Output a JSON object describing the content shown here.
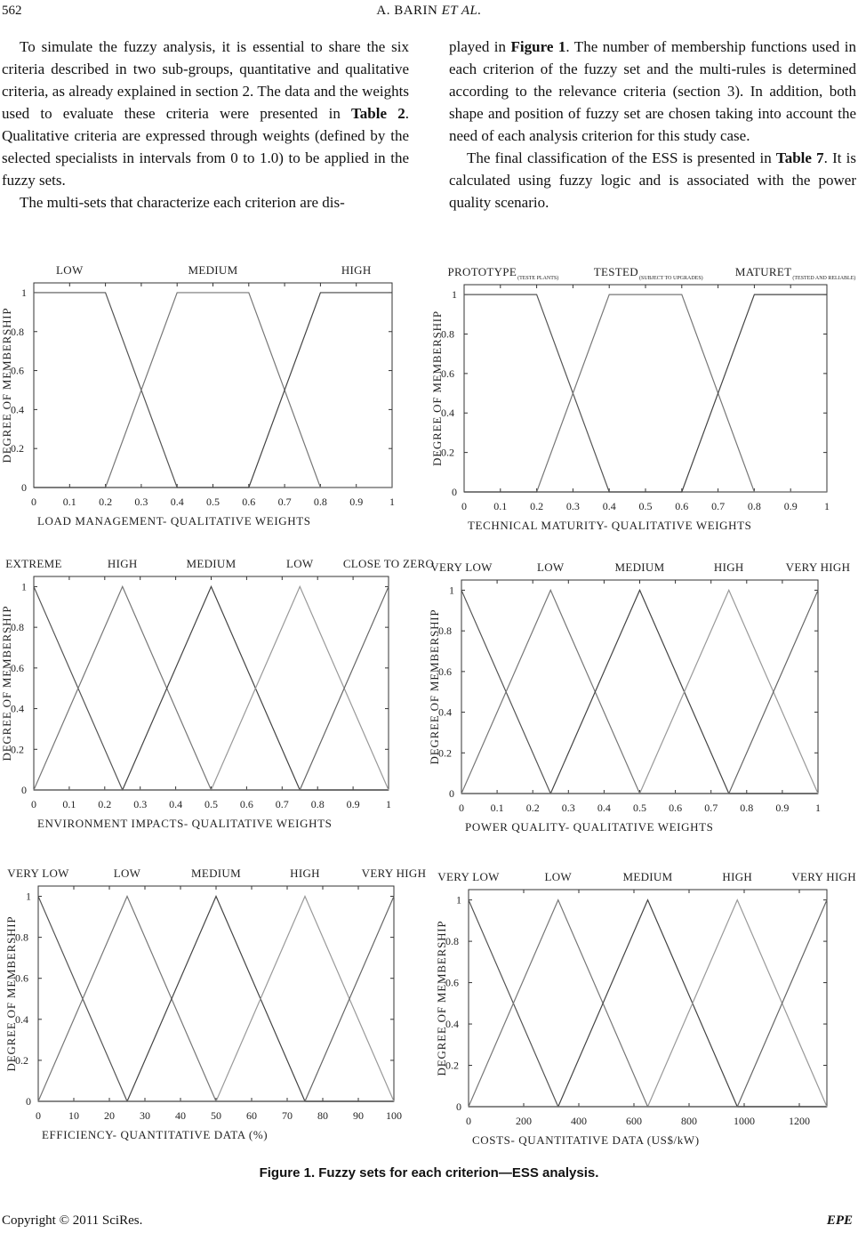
{
  "header": {
    "page_number": "562",
    "running_head_author": "A. BARIN",
    "running_head_etal": "ET AL."
  },
  "left_column": {
    "p1_a": "To simulate the fuzzy analysis, it is essential to share the six criteria described in two sub-groups, quantitative and qualitative criteria, as already explained in section 2. The data and the weights used to evaluate these criteria were presented in ",
    "p1_ref": "Table 2",
    "p1_b": ". Qualitative criteria are expressed through weights (defined by the selected specialists in intervals from 0 to 1.0) to be applied in the fuzzy sets.",
    "p2": "The multi-sets that characterize each criterion are dis-"
  },
  "right_column": {
    "p1_a": "played in ",
    "p1_ref": "Figure 1",
    "p1_b": ". The number of membership functions used in each criterion of the fuzzy set and the multi-rules is determined according to the relevance criteria (section 3). In addition, both shape and position of fuzzy set are chosen taking into account the need of each analysis criterion for this study case.",
    "p2_a": "The final classification of the ESS is presented in ",
    "p2_ref": "Table 7",
    "p2_b": ". It is calculated using fuzzy logic and is associated with the power quality scenario."
  },
  "chart_data": [
    {
      "type": "line",
      "xlabel": "LOAD MANAGEMENT- QUALITATIVE WEIGHTS",
      "ylabel": "DEGREE OF MEMBERSHIP",
      "xlim": [
        0,
        1
      ],
      "ylim": [
        0,
        1.05
      ],
      "xticks": [
        "0",
        "0.1",
        "0.2",
        "0.3",
        "0.4",
        "0.5",
        "0.6",
        "0.7",
        "0.8",
        "0.9",
        "1"
      ],
      "yticks": [
        "0",
        "0.2",
        "0.4",
        "0.6",
        "0.8",
        "1"
      ],
      "series": [
        {
          "name": "LOW",
          "x": [
            0,
            0.2,
            0.4,
            1
          ],
          "y": [
            1,
            1,
            0,
            0
          ]
        },
        {
          "name": "MEDIUM",
          "x": [
            0,
            0.2,
            0.4,
            0.6,
            0.8,
            1
          ],
          "y": [
            0,
            0,
            1,
            1,
            0,
            0
          ]
        },
        {
          "name": "HIGH",
          "x": [
            0,
            0.6,
            0.8,
            1
          ],
          "y": [
            0,
            0,
            1,
            1
          ]
        }
      ]
    },
    {
      "type": "line",
      "xlabel": "TECHNICAL MATURITY- QUALITATIVE WEIGHTS",
      "ylabel": "DEGREE OF MEMBERSHIP",
      "xlim": [
        0,
        1
      ],
      "ylim": [
        0,
        1.05
      ],
      "xticks": [
        "0",
        "0.1",
        "0.2",
        "0.3",
        "0.4",
        "0.5",
        "0.6",
        "0.7",
        "0.8",
        "0.9",
        "1"
      ],
      "yticks": [
        "0",
        "0.2",
        "0.4",
        "0.6",
        "0.8",
        "1"
      ],
      "series": [
        {
          "name": "PROTOTYPE",
          "subscript": "(TESTE PLANTS)",
          "x": [
            0,
            0.2,
            0.4,
            1
          ],
          "y": [
            1,
            1,
            0,
            0
          ]
        },
        {
          "name": "TESTED",
          "subscript": "(SUBJECT TO UPGRADES)",
          "x": [
            0,
            0.2,
            0.4,
            0.6,
            0.8,
            1
          ],
          "y": [
            0,
            0,
            1,
            1,
            0,
            0
          ]
        },
        {
          "name": "MATURET",
          "subscript": "(TESTED AND RELIABLE)",
          "x": [
            0,
            0.6,
            0.8,
            1
          ],
          "y": [
            0,
            0,
            1,
            1
          ]
        }
      ]
    },
    {
      "type": "line",
      "xlabel": "ENVIRONMENT IMPACTS- QUALITATIVE WEIGHTS",
      "ylabel": "DEGREE OF MEMBERSHIP",
      "xlim": [
        0,
        1
      ],
      "ylim": [
        0,
        1.05
      ],
      "xticks": [
        "0",
        "0.1",
        "0.2",
        "0.3",
        "0.4",
        "0.5",
        "0.6",
        "0.7",
        "0.8",
        "0.9",
        "1"
      ],
      "yticks": [
        "0",
        "0.2",
        "0.4",
        "0.6",
        "0.8",
        "1"
      ],
      "series": [
        {
          "name": "EXTREME",
          "x": [
            0,
            0.25,
            1
          ],
          "y": [
            1,
            0,
            0
          ]
        },
        {
          "name": "HIGH",
          "x": [
            0,
            0.25,
            0.5,
            1
          ],
          "y": [
            0,
            1,
            0,
            0
          ]
        },
        {
          "name": "MEDIUM",
          "x": [
            0,
            0.25,
            0.5,
            0.75,
            1
          ],
          "y": [
            0,
            0,
            1,
            0,
            0
          ]
        },
        {
          "name": "LOW",
          "x": [
            0,
            0.5,
            0.75,
            1
          ],
          "y": [
            0,
            0,
            1,
            0
          ]
        },
        {
          "name": "CLOSE TO ZERO",
          "x": [
            0,
            0.75,
            1
          ],
          "y": [
            0,
            0,
            1
          ]
        }
      ]
    },
    {
      "type": "line",
      "xlabel": "POWER QUALITY- QUALITATIVE WEIGHTS",
      "ylabel": "DEGREE OF MEMBERSHIP",
      "xlim": [
        0,
        1
      ],
      "ylim": [
        0,
        1.05
      ],
      "xticks": [
        "0",
        "0.1",
        "0.2",
        "0.3",
        "0.4",
        "0.5",
        "0.6",
        "0.7",
        "0.8",
        "0.9",
        "1"
      ],
      "yticks": [
        "0",
        "0.2",
        "0.4",
        "0.6",
        "0.8",
        "1"
      ],
      "series": [
        {
          "name": "VERY LOW",
          "x": [
            0,
            0.25,
            1
          ],
          "y": [
            1,
            0,
            0
          ]
        },
        {
          "name": "LOW",
          "x": [
            0,
            0.25,
            0.5,
            1
          ],
          "y": [
            0,
            1,
            0,
            0
          ]
        },
        {
          "name": "MEDIUM",
          "x": [
            0,
            0.25,
            0.5,
            0.75,
            1
          ],
          "y": [
            0,
            0,
            1,
            0,
            0
          ]
        },
        {
          "name": "HIGH",
          "x": [
            0,
            0.5,
            0.75,
            1
          ],
          "y": [
            0,
            0,
            1,
            0
          ]
        },
        {
          "name": "VERY HIGH",
          "x": [
            0,
            0.75,
            1
          ],
          "y": [
            0,
            0,
            1
          ]
        }
      ]
    },
    {
      "type": "line",
      "xlabel": "EFFICIENCY- QUANTITATIVE DATA (%)",
      "ylabel": "DEGREE OF MEMBERSHIP",
      "xlim": [
        0,
        100
      ],
      "ylim": [
        0,
        1.05
      ],
      "xticks": [
        "0",
        "10",
        "20",
        "30",
        "40",
        "50",
        "60",
        "70",
        "80",
        "90",
        "100"
      ],
      "yticks": [
        "0",
        "0.2",
        "0.4",
        "0.6",
        "0.8",
        "1"
      ],
      "series": [
        {
          "name": "VERY LOW",
          "x": [
            0,
            25,
            100
          ],
          "y": [
            1,
            0,
            0
          ]
        },
        {
          "name": "LOW",
          "x": [
            0,
            25,
            50,
            100
          ],
          "y": [
            0,
            1,
            0,
            0
          ]
        },
        {
          "name": "MEDIUM",
          "x": [
            0,
            25,
            50,
            75,
            100
          ],
          "y": [
            0,
            0,
            1,
            0,
            0
          ]
        },
        {
          "name": "HIGH",
          "x": [
            0,
            50,
            75,
            100
          ],
          "y": [
            0,
            0,
            1,
            0
          ]
        },
        {
          "name": "VERY HIGH",
          "x": [
            0,
            75,
            100
          ],
          "y": [
            0,
            0,
            1
          ]
        }
      ]
    },
    {
      "type": "line",
      "xlabel": "COSTS- QUANTITATIVE DATA (US$/kW)",
      "ylabel": "DEGREE OF MEMBERSHIP",
      "xlim": [
        0,
        1300
      ],
      "ylim": [
        0,
        1.05
      ],
      "xticks": [
        "0",
        "200",
        "400",
        "600",
        "800",
        "1000",
        "1200"
      ],
      "yticks": [
        "0",
        "0.2",
        "0.4",
        "0.6",
        "0.8",
        "1"
      ],
      "series": [
        {
          "name": "VERY LOW",
          "x": [
            0,
            325,
            1300
          ],
          "y": [
            1,
            0,
            0
          ]
        },
        {
          "name": "LOW",
          "x": [
            0,
            325,
            650,
            1300
          ],
          "y": [
            0,
            1,
            0,
            0
          ]
        },
        {
          "name": "MEDIUM",
          "x": [
            0,
            325,
            650,
            975,
            1300
          ],
          "y": [
            0,
            0,
            1,
            0,
            0
          ]
        },
        {
          "name": "HIGH",
          "x": [
            0,
            650,
            975,
            1300
          ],
          "y": [
            0,
            0,
            1,
            0
          ]
        },
        {
          "name": "VERY HIGH",
          "x": [
            0,
            975,
            1300
          ],
          "y": [
            0,
            0,
            1
          ]
        }
      ]
    }
  ],
  "caption": "Figure 1. Fuzzy sets for each criterion—ESS analysis.",
  "footer": {
    "copyright": "Copyright © 2011 SciRes.",
    "journal": "EPE"
  }
}
